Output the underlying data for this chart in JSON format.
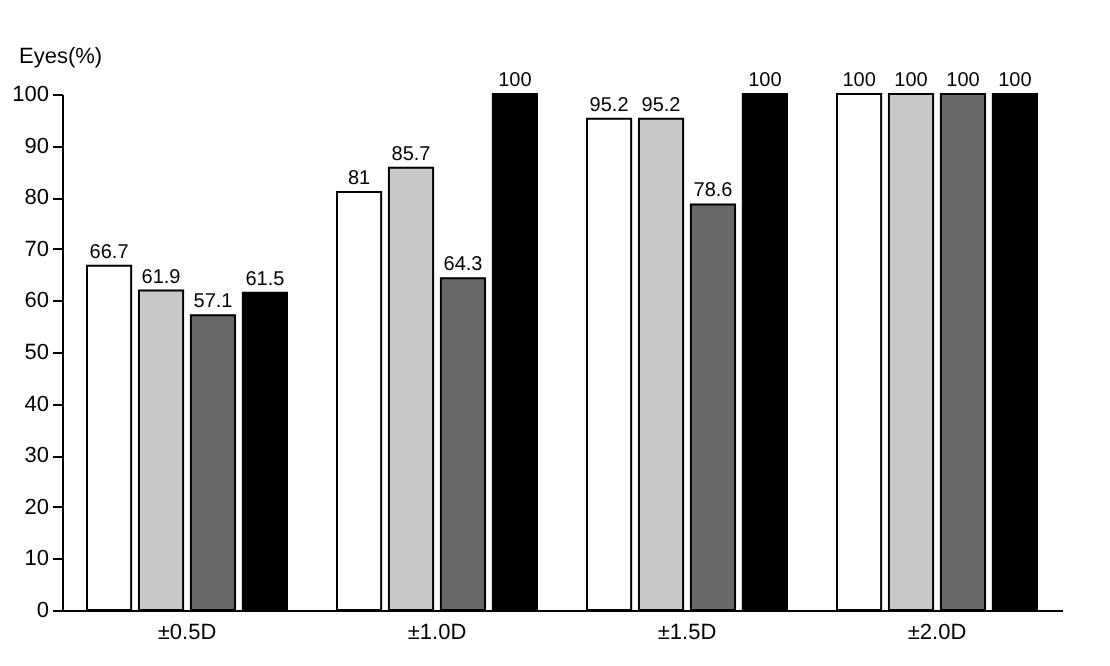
{
  "chart_data": {
    "type": "bar",
    "ylabel": "Eyes(%)",
    "categories": [
      "±0.5D",
      "±1.0D",
      "±1.5D",
      "±2.0D"
    ],
    "series": [
      {
        "color": "#ffffff",
        "values": [
          66.7,
          81,
          95.2,
          100
        ]
      },
      {
        "color": "#c8c8c8",
        "values": [
          61.9,
          85.7,
          95.2,
          100
        ]
      },
      {
        "color": "#686868",
        "values": [
          57.1,
          64.3,
          78.6,
          100
        ]
      },
      {
        "color": "#000000",
        "values": [
          61.5,
          100,
          100,
          100
        ]
      }
    ],
    "ylim": [
      0,
      100
    ],
    "yticks": [
      0,
      10,
      20,
      30,
      40,
      50,
      60,
      70,
      80,
      90,
      100
    ],
    "grid": false,
    "data_labels": true,
    "legend": false
  }
}
